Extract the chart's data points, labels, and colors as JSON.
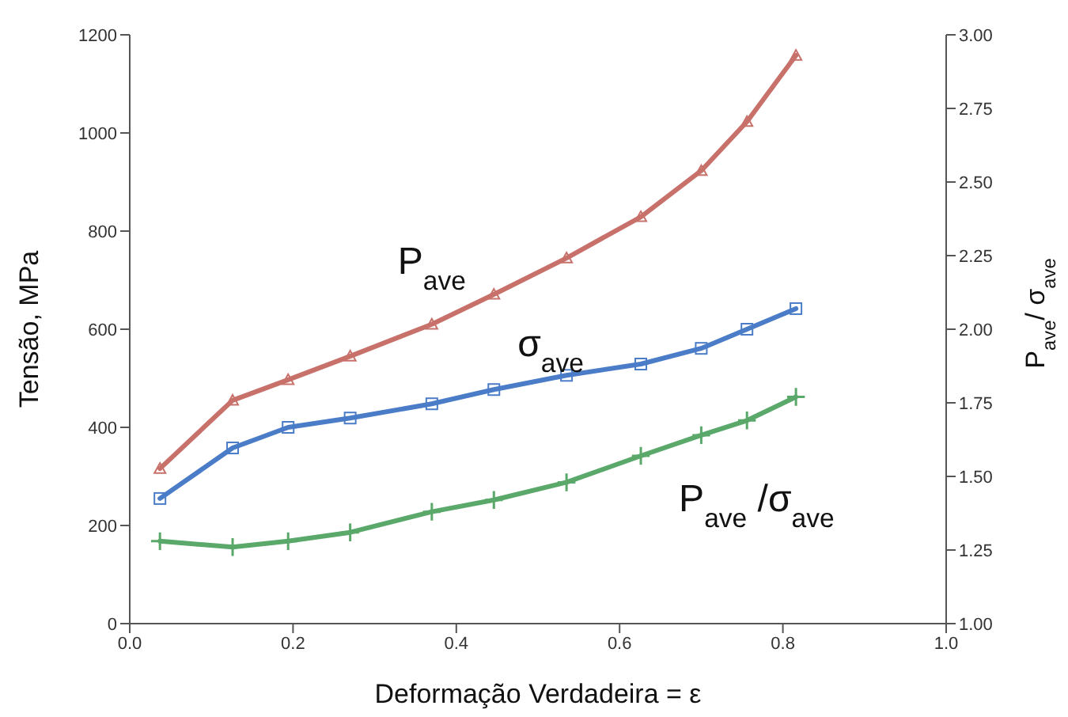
{
  "chart_data": {
    "type": "line",
    "xlabel": "Deformação Verdadeira = ε",
    "ylabel": "Tensão, MPa",
    "y2label": "P$_{ave}$/ σ$_{ave}$",
    "x": [
      0.037,
      0.126,
      0.194,
      0.27,
      0.37,
      0.446,
      0.535,
      0.626,
      0.7,
      0.756,
      0.816
    ],
    "xlim": [
      0,
      1
    ],
    "xticks": [
      {
        "value": 0,
        "label": "0.0"
      },
      {
        "value": 0.2,
        "label": "0.2"
      },
      {
        "value": 0.4,
        "label": "0.4"
      },
      {
        "value": 0.6,
        "label": "0.6"
      },
      {
        "value": 0.8,
        "label": "0.8"
      },
      {
        "value": 1,
        "label": "1.0"
      }
    ],
    "ylim": [
      0,
      1200
    ],
    "yticks": [
      0,
      200,
      400,
      600,
      800,
      1000,
      1200
    ],
    "y2lim": [
      1,
      3
    ],
    "y2ticks": [
      {
        "value": 1,
        "label": "1.00"
      },
      {
        "value": 1.25,
        "label": "1.25"
      },
      {
        "value": 1.5,
        "label": "1.50"
      },
      {
        "value": 1.75,
        "label": "1.75"
      },
      {
        "value": 2,
        "label": "2.00"
      },
      {
        "value": 2.25,
        "label": "2.25"
      },
      {
        "value": 2.5,
        "label": "2.50"
      },
      {
        "value": 2.75,
        "label": "2.75"
      },
      {
        "value": 3,
        "label": "3.00"
      }
    ],
    "grid": false,
    "legend": false,
    "line_style": "solid",
    "series": [
      {
        "name": "P$_{ave}$",
        "color": "#c8706a",
        "marker": "triangle",
        "values": [
          316,
          455,
          497,
          545,
          610,
          671,
          745,
          829,
          923,
          1023,
          1158
        ]
      },
      {
        "name": "σ$_{ave}$",
        "color": "#4a7cc8",
        "marker": "square",
        "values": [
          255,
          358,
          400,
          419,
          448,
          477,
          506,
          529,
          561,
          600,
          642
        ]
      },
      {
        "name": "P$_{ave}$ /σ$_{ave}$",
        "color": "#5aa86a",
        "marker": "cross",
        "axis": "y2",
        "values": [
          1.28,
          1.26,
          1.28,
          1.31,
          1.38,
          1.42,
          1.48,
          1.57,
          1.64,
          1.69,
          1.77
        ]
      }
    ]
  }
}
